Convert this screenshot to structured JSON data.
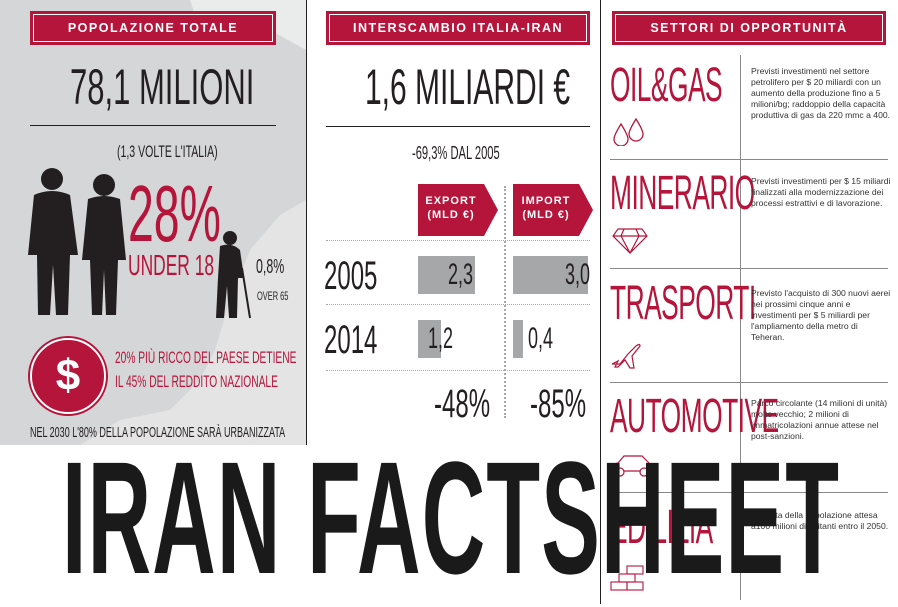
{
  "population": {
    "banner": "POPOLAZIONE TOTALE",
    "total": "78,1 MILIONI",
    "ratio": "(1,3 VOLTE L'ITALIA)",
    "young_pct": "28%",
    "young_label": "UNDER 18",
    "old_pct": "0,8%",
    "old_label": "OVER 65",
    "wealth_line1": "20% PIÙ RICCO DEL PAESE DETIENE",
    "wealth_line2": "IL 45% DEL REDDITO NAZIONALE",
    "urban": "NEL 2030 L'80% DELLA POPOLAZIONE SARÀ URBANIZZATA",
    "dollar": "$"
  },
  "trade": {
    "banner": "INTERSCAMBIO ITALIA-IRAN",
    "total": "1,6 MILIARDI €",
    "change": "-69,3% DAL 2005",
    "export_label_1": "EXPORT",
    "export_label_2": "(MLD €)",
    "import_label_1": "IMPORT",
    "import_label_2": "(MLD €)",
    "rows": [
      {
        "year": "2005",
        "export": "2,3",
        "import": "3,0"
      },
      {
        "year": "2014",
        "export": "1,2",
        "import": "0,4"
      }
    ],
    "export_change": "-48%",
    "import_change": "-85%"
  },
  "sectors": {
    "banner": "SETTORI DI OPPORTUNITÀ",
    "items": [
      {
        "title": "OIL&GAS",
        "icon": "drops-icon",
        "desc": "Previsti investimenti nel settore petrolifero per $ 20 miliardi con un aumento della produzione fino a 5 milioni/bg; raddoppio della capacità produttiva di gas da 220 mmc a 400."
      },
      {
        "title": "MINERARIO",
        "icon": "diamond-icon",
        "desc": "Previsti investimenti per $ 15 miliardi finalizzati alla modernizzazione dei processi estrattivi e di lavorazione."
      },
      {
        "title": "TRASPORTI",
        "icon": "airplane-icon",
        "desc": "Previsto l'acquisto di 300 nuovi aerei nei prossimi cinque anni e investimenti per $ 5 miliardi per l'ampliamento della metro di Teheran."
      },
      {
        "title": "AUTOMOTIVE",
        "icon": "car-icon",
        "desc": "Parco circolante (14 milioni di unità) molto vecchio; 2 milioni di immatricolazioni annue attese nel post-sanzioni."
      },
      {
        "title": "EDILIZIA",
        "icon": "bricks-icon",
        "desc": "Crescita della popolazione attesa a100 milioni di abitanti entro il 2050."
      }
    ]
  },
  "headline": "IRAN FACTSHEET",
  "colors": {
    "accent": "#b5153b",
    "bar": "#a6a7a9",
    "panel": "#e4e4e5"
  }
}
